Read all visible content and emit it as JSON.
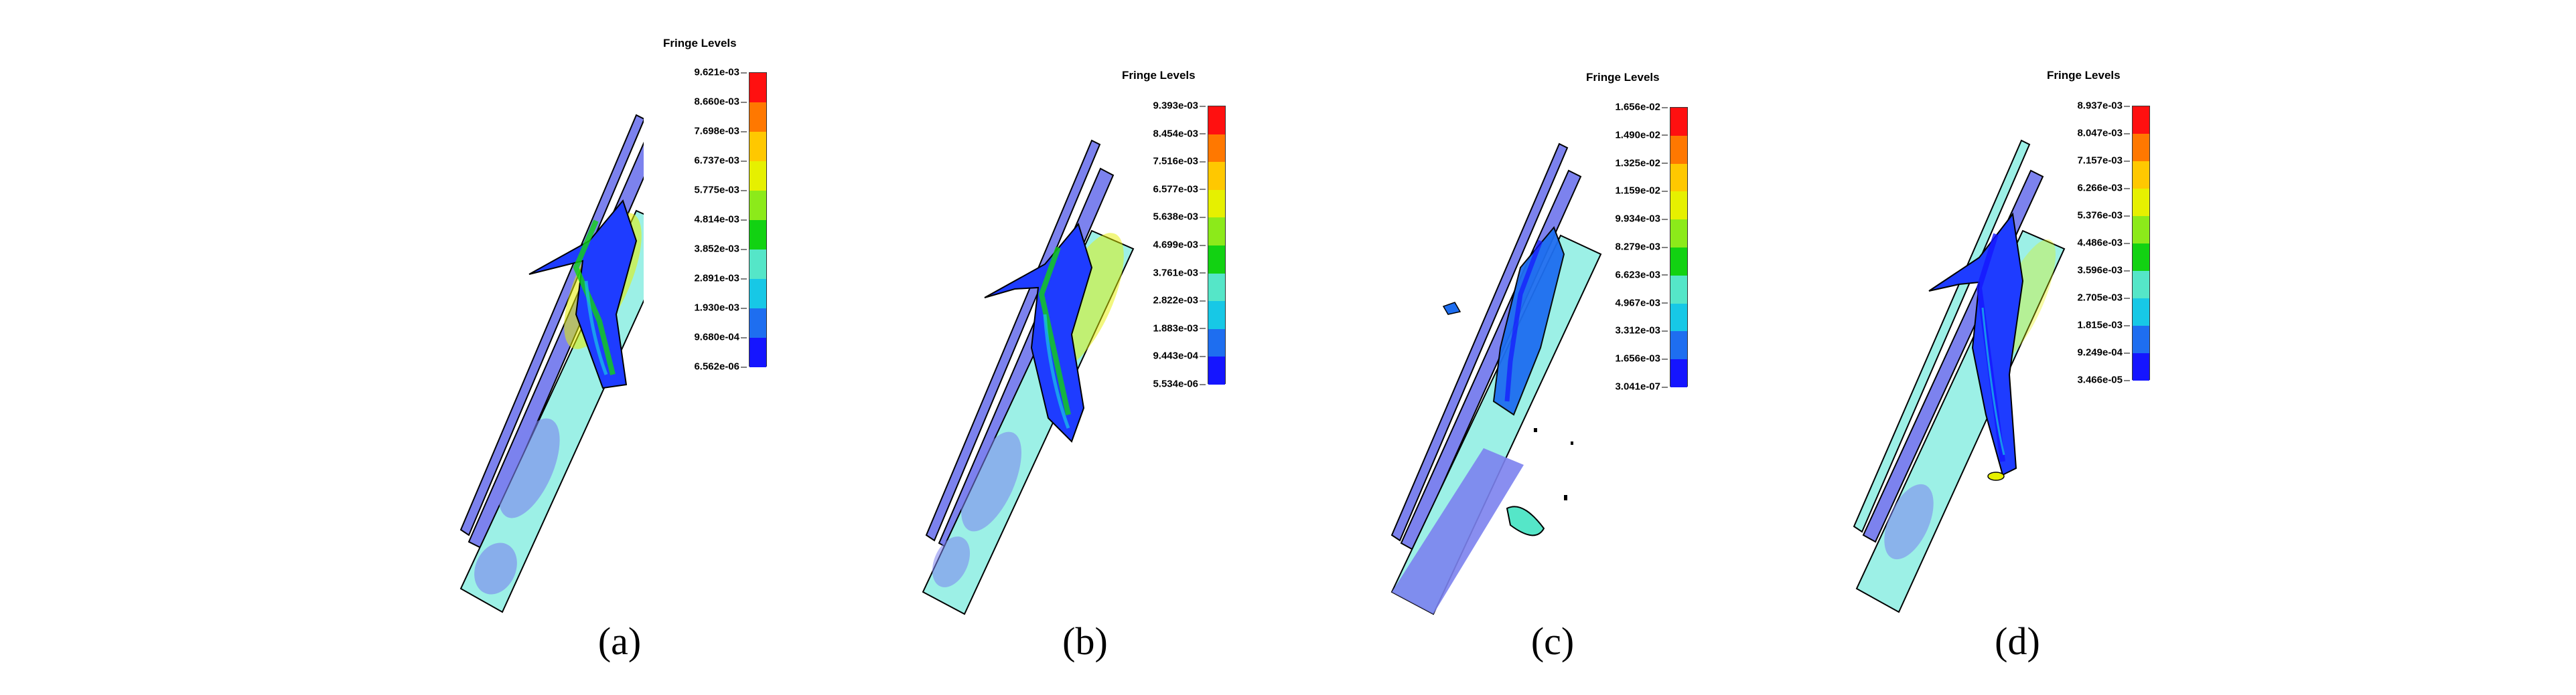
{
  "colors": {
    "scale": [
      "#1515ff",
      "#1e6ef0",
      "#17c8e6",
      "#55e6c8",
      "#12d212",
      "#8cea1a",
      "#e6f000",
      "#ffc800",
      "#ff7800",
      "#ff1010"
    ],
    "plate": "#7c82ee",
    "background_field": "#9cf0e6"
  },
  "panels": [
    {
      "caption": "(a)",
      "legend_title": "Fringe Levels",
      "levels": [
        "9.621e-03",
        "8.660e-03",
        "7.698e-03",
        "6.737e-03",
        "5.775e-03",
        "4.814e-03",
        "3.852e-03",
        "2.891e-03",
        "1.930e-03",
        "9.680e-04",
        "6.562e-06"
      ]
    },
    {
      "caption": "(b)",
      "legend_title": "Fringe Levels",
      "levels": [
        "9.393e-03",
        "8.454e-03",
        "7.516e-03",
        "6.577e-03",
        "5.638e-03",
        "4.699e-03",
        "3.761e-03",
        "2.822e-03",
        "1.883e-03",
        "9.443e-04",
        "5.534e-06"
      ]
    },
    {
      "caption": "(c)",
      "legend_title": "Fringe Levels",
      "levels": [
        "1.656e-02",
        "1.490e-02",
        "1.325e-02",
        "1.159e-02",
        "9.934e-03",
        "8.279e-03",
        "6.623e-03",
        "4.967e-03",
        "3.312e-03",
        "1.656e-03",
        "3.041e-07"
      ]
    },
    {
      "caption": "(d)",
      "legend_title": "Fringe Levels",
      "levels": [
        "8.937e-03",
        "8.047e-03",
        "7.157e-03",
        "6.266e-03",
        "5.376e-03",
        "4.486e-03",
        "3.596e-03",
        "2.705e-03",
        "1.815e-03",
        "9.249e-04",
        "3.466e-05"
      ]
    }
  ]
}
